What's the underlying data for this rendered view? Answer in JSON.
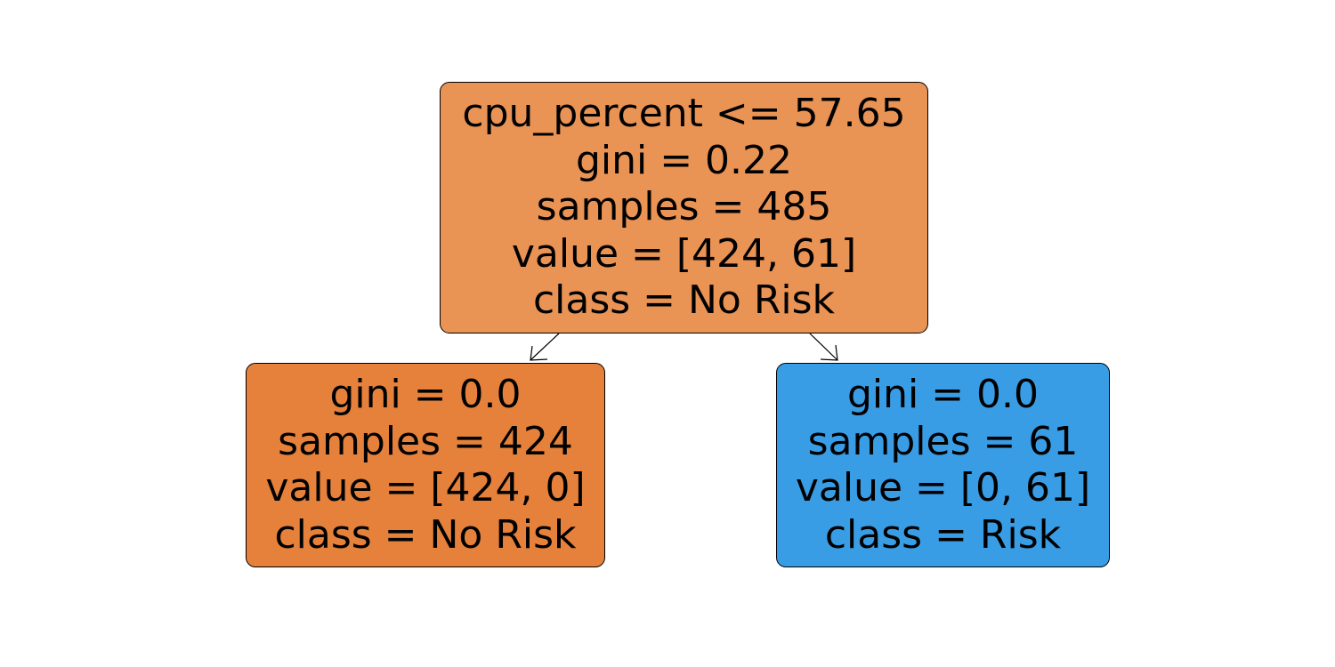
{
  "colors": {
    "root_fill": "#e99355",
    "no_risk_fill": "#e5813a",
    "risk_fill": "#399de5",
    "edge": "#000000",
    "border": "#000000"
  },
  "tree": {
    "root": {
      "split": "cpu_percent <= 57.65",
      "gini": "gini = 0.22",
      "samples": "samples = 485",
      "value": "value = [424, 61]",
      "class": "class = No Risk"
    },
    "left": {
      "gini": "gini = 0.0",
      "samples": "samples = 424",
      "value": "value = [424, 0]",
      "class": "class = No Risk"
    },
    "right": {
      "gini": "gini = 0.0",
      "samples": "samples = 61",
      "value": "value = [0, 61]",
      "class": "class = Risk"
    }
  }
}
